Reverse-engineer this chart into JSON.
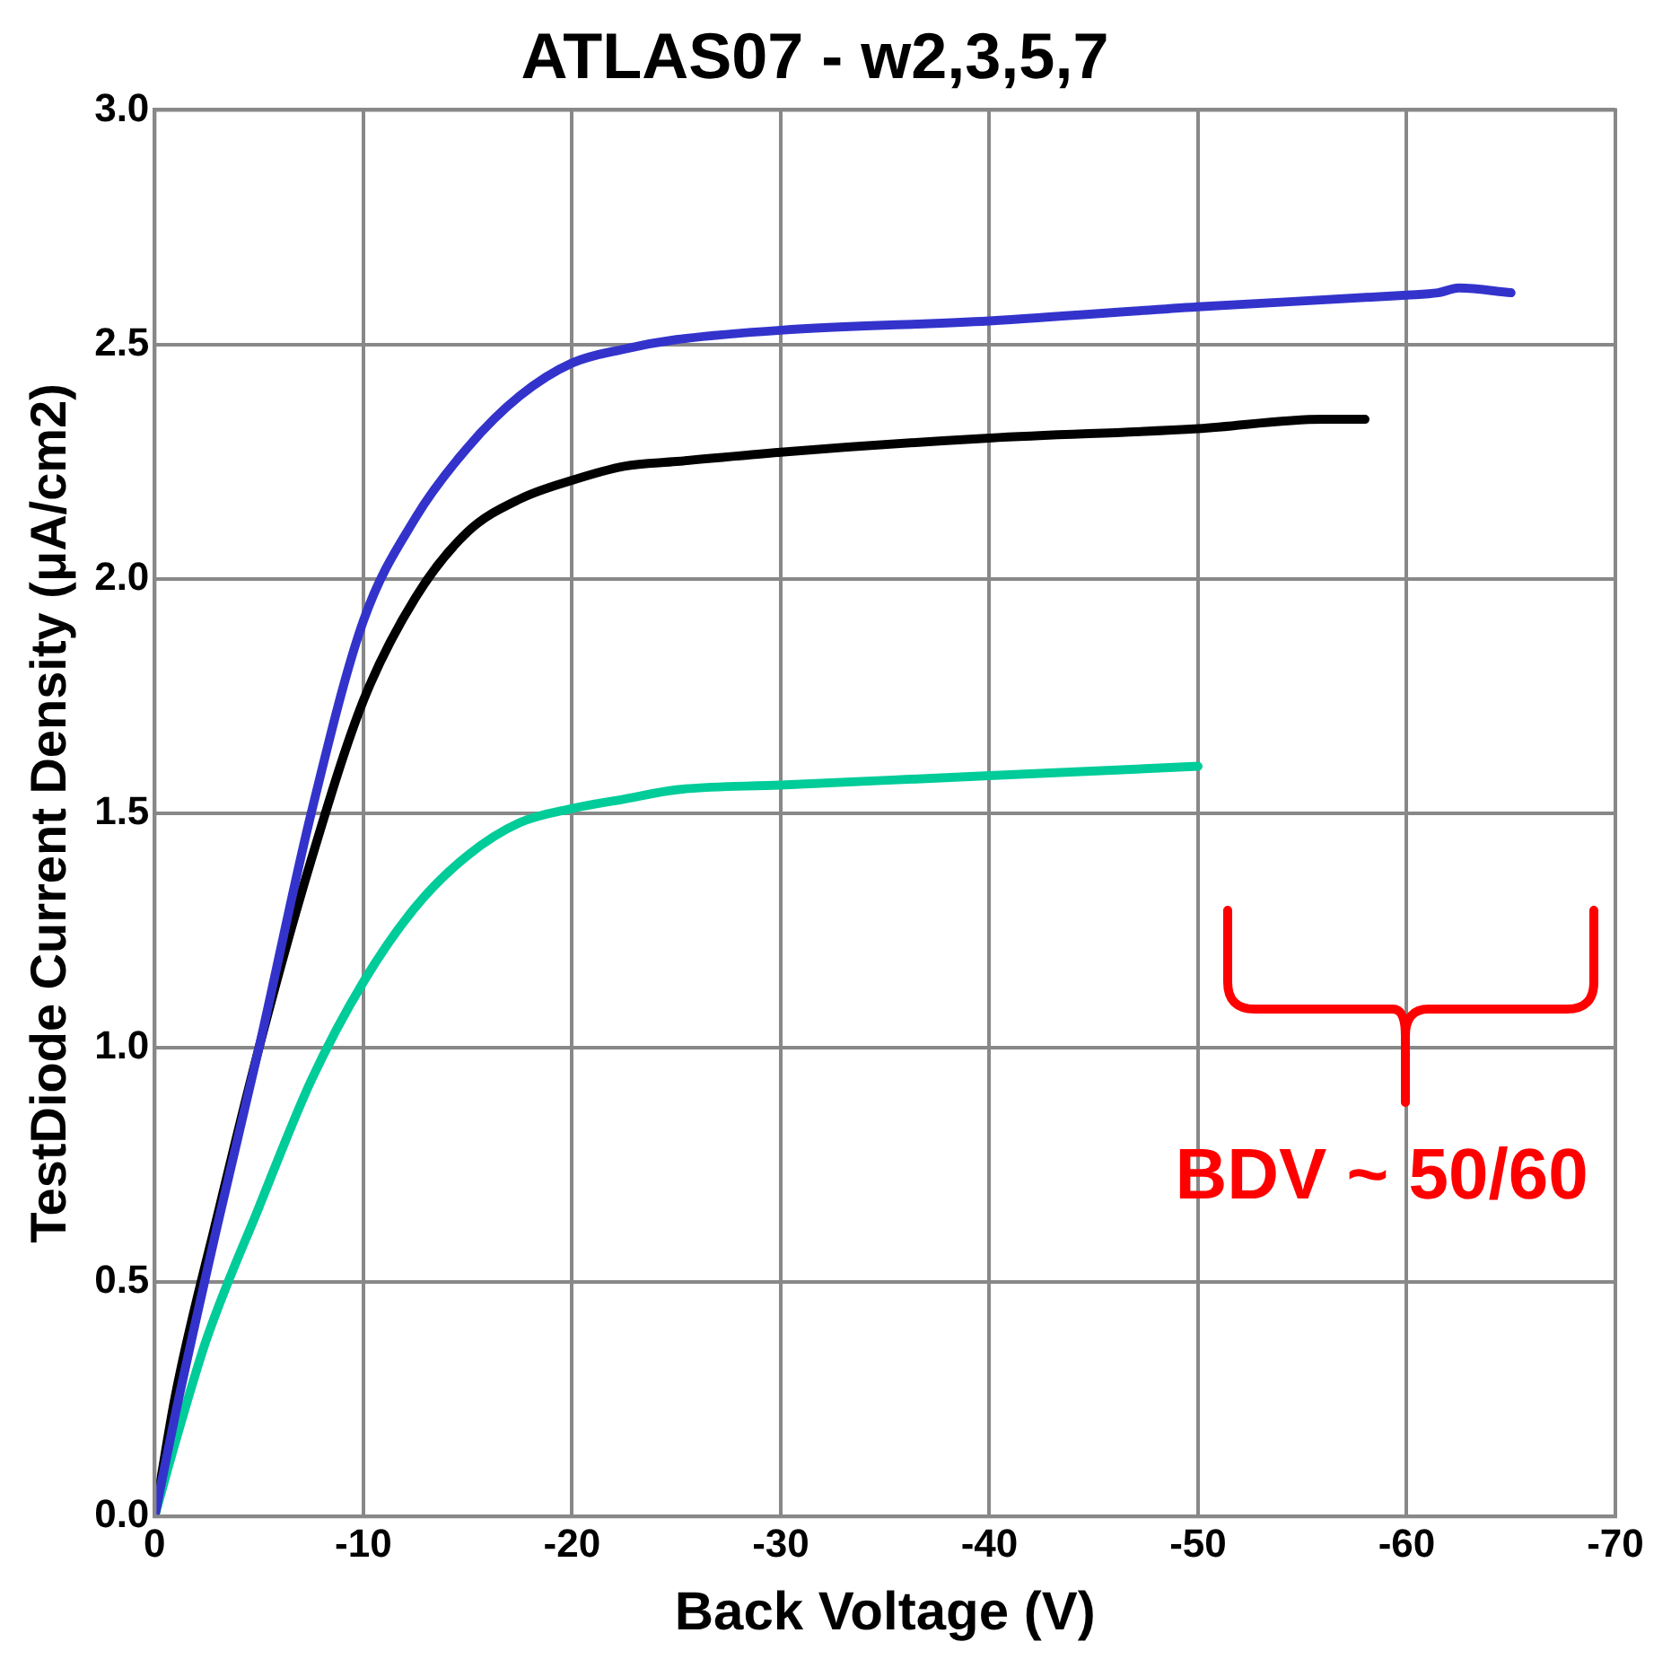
{
  "chart_data": {
    "type": "line",
    "title": "ATLAS07 - w2,3,5,7",
    "xlabel": "Back Voltage (V)",
    "ylabel": "TestDiode Current Density (μA/cm2)",
    "xlim": [
      0,
      -70
    ],
    "xticks": [
      0,
      -10,
      -20,
      -30,
      -40,
      -50,
      -60,
      -70
    ],
    "ylim": [
      0,
      3
    ],
    "yticks": [
      {
        "value": 0,
        "label": "0.0"
      },
      {
        "value": 0.5,
        "label": "0.5"
      },
      {
        "value": 1,
        "label": "1.0"
      },
      {
        "value": 1.5,
        "label": "1.5"
      },
      {
        "value": 2,
        "label": "2.0"
      },
      {
        "value": 2.5,
        "label": "2.5"
      },
      {
        "value": 3,
        "label": "3.0"
      }
    ],
    "grid": true,
    "legend": false,
    "marker": "none",
    "line_style": "solid",
    "series": [
      {
        "color": "#3333cc",
        "x": [
          0,
          -1,
          -3,
          -5,
          -7.5,
          -10,
          -12.5,
          -15,
          -17.5,
          -20,
          -22.5,
          -25,
          -30,
          -40,
          -50,
          -60,
          -61.5,
          -62.5,
          -65
        ],
        "values": [
          0,
          0.22,
          0.62,
          1.0,
          1.5,
          1.91,
          2.13,
          2.28,
          2.39,
          2.46,
          2.49,
          2.51,
          2.53,
          2.55,
          2.58,
          2.605,
          2.61,
          2.62,
          2.61
        ]
      },
      {
        "color": "#000000",
        "x": [
          0,
          -1,
          -3,
          -5,
          -7.5,
          -10,
          -12.5,
          -15,
          -17.5,
          -20,
          -22.5,
          -25,
          -30,
          -40,
          -50,
          -56,
          -58
        ],
        "values": [
          0,
          0.26,
          0.64,
          1.0,
          1.4,
          1.74,
          1.96,
          2.1,
          2.17,
          2.21,
          2.24,
          2.25,
          2.27,
          2.3,
          2.32,
          2.34,
          2.34
        ]
      },
      {
        "color": "#00cc99",
        "x": [
          0,
          -1,
          -2.5,
          -5,
          -7.5,
          -10,
          -12.5,
          -15,
          -17.5,
          -20,
          -22.5,
          -25,
          -30,
          -40,
          -50
        ],
        "values": [
          0,
          0.16,
          0.38,
          0.66,
          0.93,
          1.14,
          1.3,
          1.41,
          1.48,
          1.51,
          1.53,
          1.55,
          1.56,
          1.58,
          1.6
        ]
      }
    ],
    "annotations": [
      "BDV ~ 50/60"
    ]
  }
}
